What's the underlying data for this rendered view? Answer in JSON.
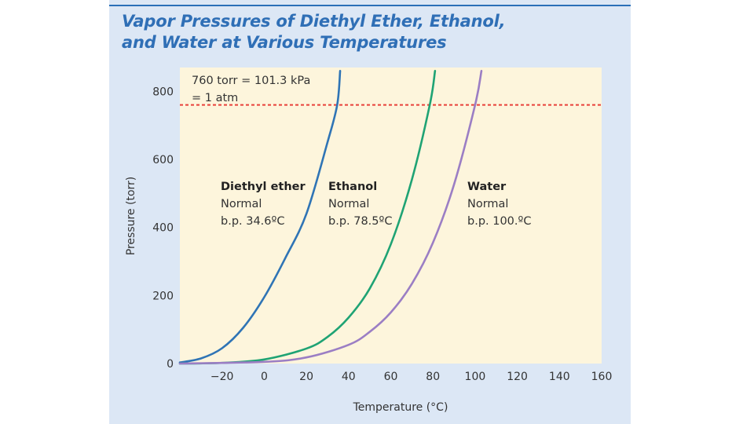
{
  "chart_data": {
    "type": "line",
    "title_lines": [
      "Vapor Pressures of Diethyl Ether, Ethanol,",
      "and Water at Various Temperatures"
    ],
    "xlabel": "Temperature (°C)",
    "ylabel": "Pressure (torr)",
    "xlim": [
      -40,
      160
    ],
    "ylim": [
      0,
      870
    ],
    "x_ticks": [
      -20,
      0,
      20,
      40,
      60,
      80,
      100,
      120,
      140,
      160
    ],
    "x_tick_labels": [
      "−20",
      "0",
      "20",
      "40",
      "60",
      "80",
      "100",
      "120",
      "140",
      "160"
    ],
    "y_ticks": [
      0,
      200,
      400,
      600,
      800
    ],
    "y_tick_labels": [
      "0",
      "200",
      "400",
      "600",
      "800"
    ],
    "reference_line": {
      "y": 760,
      "color": "#e8403a",
      "label_lines": [
        "760 torr = 101.3 kPa",
        "= 1 atm"
      ]
    },
    "series": [
      {
        "name": "Diethyl ether",
        "color": "#2f74b5",
        "label_lines": [
          "Diethyl ether",
          "Normal",
          "b.p. 34.6ºC"
        ],
        "x": [
          -40,
          -30,
          -20,
          -10,
          0,
          10,
          20,
          30,
          34.6,
          36
        ],
        "y": [
          3,
          15,
          45,
          105,
          195,
          310,
          440,
          650,
          760,
          860
        ]
      },
      {
        "name": "Ethanol",
        "color": "#1fa374",
        "label_lines": [
          "Ethanol",
          "Normal",
          "b.p. 78.5ºC"
        ],
        "x": [
          -40,
          -20,
          0,
          20,
          30,
          40,
          50,
          60,
          70,
          78.5,
          81
        ],
        "y": [
          0,
          2,
          12,
          44,
          78,
          135,
          220,
          350,
          540,
          760,
          860
        ]
      },
      {
        "name": "Water",
        "color": "#9b7ec4",
        "label_lines": [
          "Water",
          "Normal",
          "b.p. 100.ºC"
        ],
        "x": [
          -40,
          0,
          20,
          40,
          50,
          60,
          70,
          80,
          90,
          100,
          103
        ],
        "y": [
          0,
          5,
          18,
          55,
          93,
          150,
          234,
          355,
          526,
          760,
          860
        ]
      }
    ]
  }
}
